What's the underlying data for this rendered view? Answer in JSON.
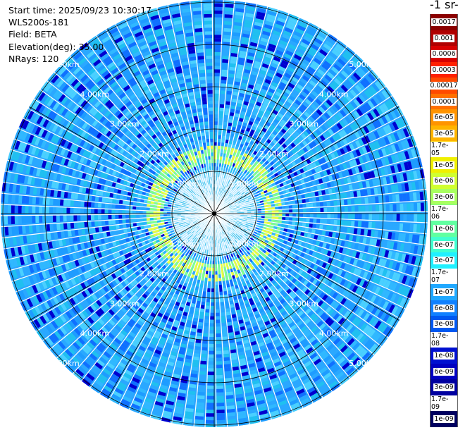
{
  "header": {
    "start_time": "Start time: 2025/09/23 10:30:17",
    "instrument": "WLS200s-181",
    "field": "Field: BETA",
    "elevation": "Elevation(deg): 35.00",
    "nrays": "NRays: 120"
  },
  "colorbar": {
    "units_label": "-1 sr-",
    "labels": [
      "0.0017",
      "0.001",
      "0.0006",
      "0.0003",
      "0.00017",
      "0.0001",
      "6e-05",
      "3e-05",
      "1.7e-05",
      "1e-05",
      "6e-06",
      "3e-06",
      "1.7e-06",
      "1e-06",
      "6e-07",
      "3e-07",
      "1.7e-07",
      "1e-07",
      "6e-08",
      "3e-08",
      "1.7e-08",
      "1e-08",
      "6e-09",
      "3e-09",
      "1.7e-09",
      "1e-09"
    ],
    "colors": [
      "#8b0000",
      "#b00000",
      "#d80000",
      "#ff2000",
      "#ff4a00",
      "#ff7000",
      "#ff9400",
      "#ffb400",
      "#ffd000",
      "#f0f000",
      "#d0ff30",
      "#a8ff60",
      "#80ff80",
      "#60ffa0",
      "#40ffd0",
      "#20f0ff",
      "#30c8ff",
      "#20a8ff",
      "#1080ff",
      "#0058f0",
      "#0030e0",
      "#0010d0",
      "#0000c0",
      "#0000a0",
      "#000080",
      "#000060"
    ]
  },
  "range_rings": {
    "unit": "km",
    "labels": [
      "1.00km",
      "2.00km",
      "3.00km",
      "4.00km",
      "5.00km"
    ]
  }
}
